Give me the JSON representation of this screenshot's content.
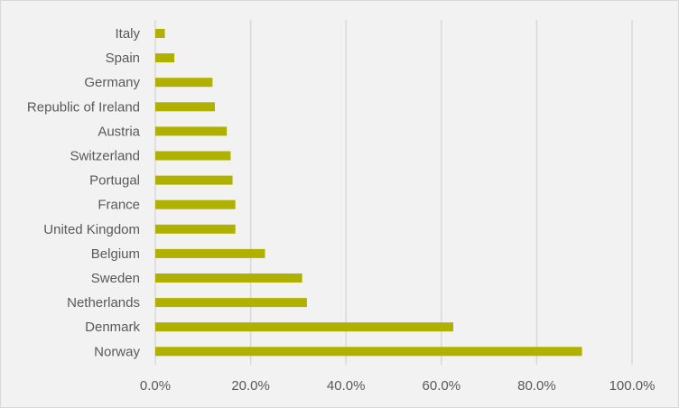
{
  "chart_data": {
    "type": "bar",
    "orientation": "horizontal",
    "categories": [
      "Italy",
      "Spain",
      "Germany",
      "Republic of Ireland",
      "Austria",
      "Switzerland",
      "Portugal",
      "France",
      "United Kingdom",
      "Belgium",
      "Sweden",
      "Netherlands",
      "Denmark",
      "Norway"
    ],
    "values": [
      2.0,
      4.0,
      12.0,
      12.5,
      15.0,
      15.8,
      16.2,
      16.8,
      16.8,
      23.0,
      30.8,
      31.8,
      62.5,
      89.5
    ],
    "xlim": [
      0,
      100
    ],
    "xticks": [
      "0.0%",
      "20.0%",
      "40.0%",
      "60.0%",
      "80.0%",
      "100.0%"
    ],
    "title": "",
    "xlabel": "",
    "ylabel": "",
    "grid": "vertical",
    "bar_color": "#b0b000",
    "grid_color": "#d9d9d9",
    "background_color": "#f2f2f2"
  }
}
